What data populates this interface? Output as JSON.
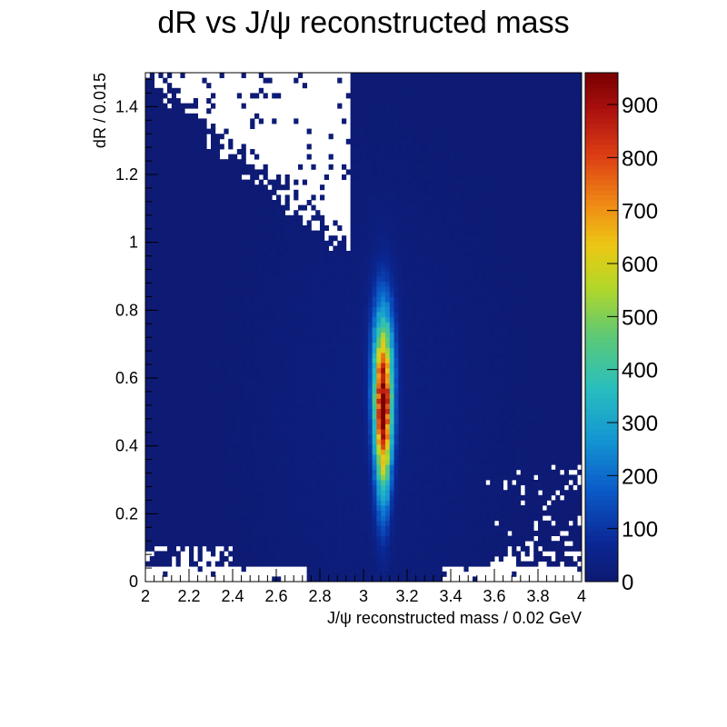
{
  "chart_data": {
    "type": "heatmap",
    "title": "dR vs J/ψ reconstructed mass",
    "xlabel": "J/ψ reconstructed mass / 0.02 GeV",
    "ylabel": "dR / 0.015",
    "xlim": [
      2,
      4
    ],
    "ylim": [
      0,
      1.5
    ],
    "x_bin_width": 0.02,
    "y_bin_width": 0.015,
    "xticks": [
      "2",
      "2.2",
      "2.4",
      "2.6",
      "2.8",
      "3",
      "3.2",
      "3.4",
      "3.6",
      "3.8",
      "4"
    ],
    "yticks": [
      "0",
      "0.2",
      "0.4",
      "0.6",
      "0.8",
      "1",
      "1.2",
      "1.4"
    ],
    "zlim": [
      0,
      960
    ],
    "zticks": [
      "0",
      "100",
      "200",
      "300",
      "400",
      "500",
      "600",
      "700",
      "800",
      "900"
    ],
    "colormap": "rainbow",
    "grid": false,
    "peak": {
      "x_center": 3.09,
      "x_sigma": 0.028,
      "y_center": 0.52,
      "y_sigma": 0.17,
      "max_count": 950
    },
    "empty_regions": [
      "upper-left corner (x < 2.9, dR > 1.0)",
      "bottom band (dR < 0.1)"
    ]
  }
}
